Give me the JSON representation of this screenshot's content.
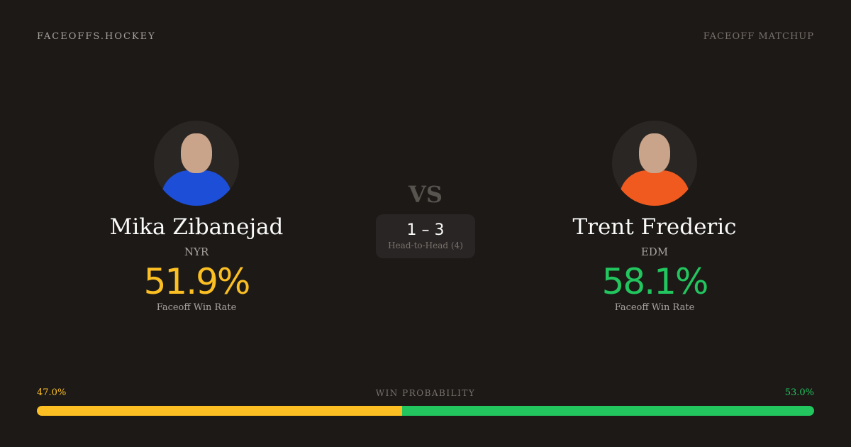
{
  "header": {
    "brand": "FACEOFFS.HOCKEY",
    "tag": "FACEOFF MATCHUP"
  },
  "players": [
    {
      "name": "Mika Zibanejad",
      "team": "NYR",
      "rate": "51.9%",
      "rate_label": "Faceoff Win Rate",
      "color": "#fbbf24",
      "jersey": "#1d4ed8"
    },
    {
      "name": "Trent Frederic",
      "team": "EDM",
      "rate": "58.1%",
      "rate_label": "Faceoff Win Rate",
      "color": "#22c55e",
      "jersey": "#f05a1f"
    }
  ],
  "versus": "VS",
  "head_to_head": {
    "score": "1 – 3",
    "label": "Head-to-Head (4)"
  },
  "win_probability": {
    "label": "WIN PROBABILITY",
    "left": "47.0%",
    "right": "53.0%",
    "left_value": 47.0,
    "right_value": 53.0
  }
}
